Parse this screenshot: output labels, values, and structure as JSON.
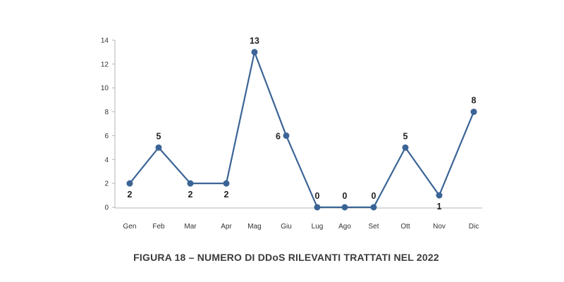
{
  "chart_data": {
    "type": "line",
    "categories": [
      "Gen",
      "Feb",
      "Mar",
      "Apr",
      "Mag",
      "Giu",
      "Lug",
      "Ago",
      "Set",
      "Ott",
      "Nov",
      "Dic"
    ],
    "values": [
      2,
      5,
      2,
      2,
      13,
      6,
      0,
      0,
      0,
      5,
      1,
      8
    ],
    "title": "FIGURA 18 – NUMERO DI DDoS RILEVANTI TRATTATI NEL 2022",
    "ylim": [
      0,
      14
    ],
    "yticks": [
      0,
      2,
      4,
      6,
      8,
      10,
      12,
      14
    ],
    "grid": false,
    "legend": "none",
    "line_color": "#3b6496",
    "marker_color": "#3b6496"
  }
}
